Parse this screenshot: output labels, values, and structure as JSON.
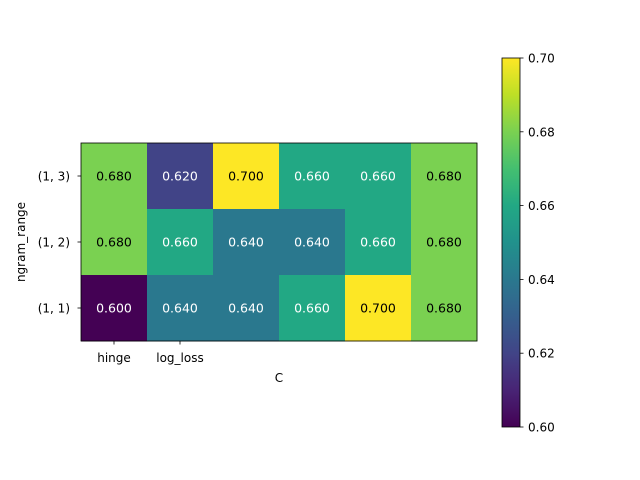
{
  "chart_data": {
    "type": "heatmap",
    "title": "",
    "xlabel": "C",
    "ylabel": "ngram_range",
    "x_tick_labels": [
      "hinge",
      "log_loss"
    ],
    "columns": 6,
    "y_categories": [
      "(1, 3)",
      "(1, 2)",
      "(1, 1)"
    ],
    "values": [
      [
        0.68,
        0.62,
        0.7,
        0.66,
        0.66,
        0.68
      ],
      [
        0.68,
        0.66,
        0.64,
        0.64,
        0.66,
        0.68
      ],
      [
        0.6,
        0.64,
        0.64,
        0.66,
        0.7,
        0.68
      ]
    ],
    "value_labels": [
      [
        "0.680",
        "0.620",
        "0.700",
        "0.660",
        "0.660",
        "0.680"
      ],
      [
        "0.680",
        "0.660",
        "0.640",
        "0.640",
        "0.660",
        "0.680"
      ],
      [
        "0.600",
        "0.640",
        "0.640",
        "0.660",
        "0.700",
        "0.680"
      ]
    ],
    "colormap": "viridis",
    "vmin": 0.6,
    "vmax": 0.7,
    "colorbar": {
      "ticks": [
        0.6,
        0.62,
        0.64,
        0.66,
        0.68,
        0.7
      ],
      "tick_labels": [
        "0.60",
        "0.62",
        "0.64",
        "0.66",
        "0.68",
        "0.70"
      ]
    }
  }
}
